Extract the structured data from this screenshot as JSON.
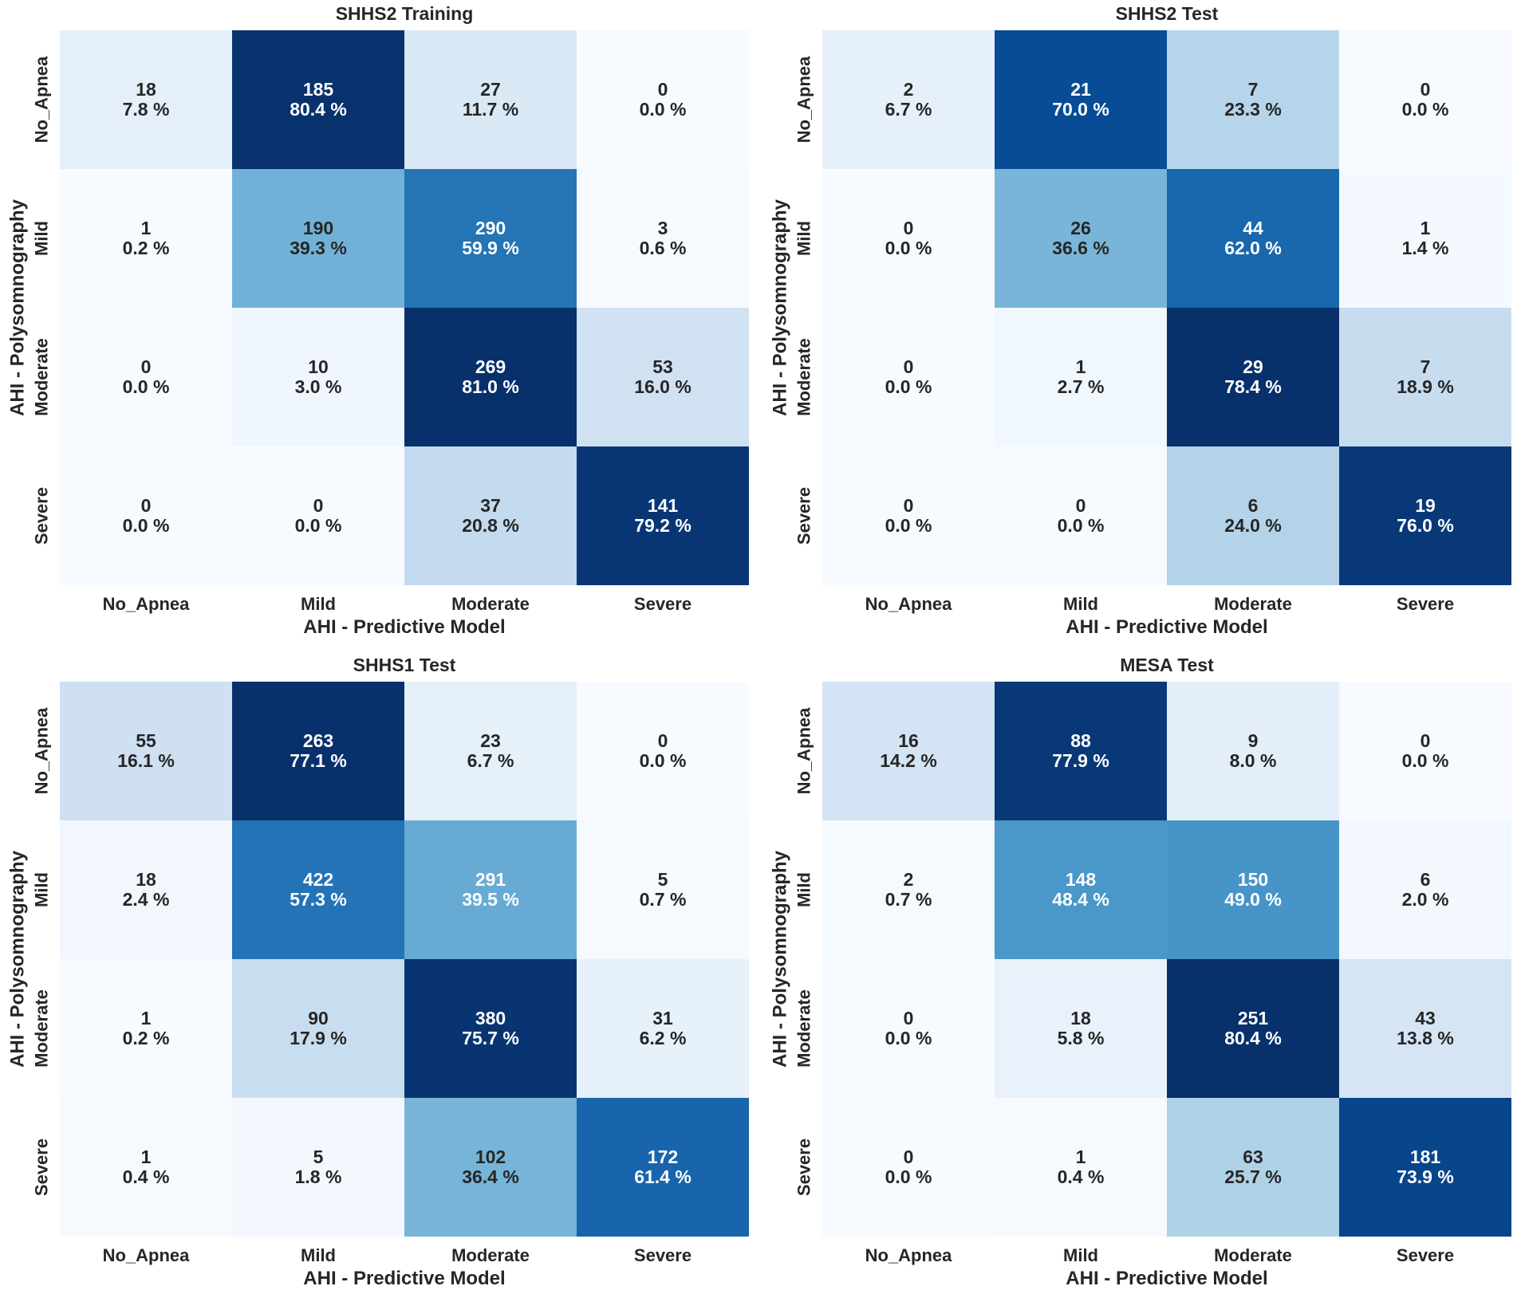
{
  "chart_data": [
    {
      "type": "heatmap",
      "title": "SHHS2 Training",
      "xlabel": "AHI - Predictive Model",
      "ylabel": "AHI - Polysomnography",
      "x_categories": [
        "No_Apnea",
        "Mild",
        "Moderate",
        "Severe"
      ],
      "y_categories": [
        "No_Apnea",
        "Mild",
        "Moderate",
        "Severe"
      ],
      "counts": [
        [
          18,
          185,
          27,
          0
        ],
        [
          1,
          190,
          290,
          3
        ],
        [
          0,
          10,
          269,
          53
        ],
        [
          0,
          0,
          37,
          141
        ]
      ],
      "percents": [
        [
          "7.8 %",
          "80.4 %",
          "11.7 %",
          "0.0 %"
        ],
        [
          "0.2 %",
          "39.3 %",
          "59.9 %",
          "0.6 %"
        ],
        [
          "0.0 %",
          "3.0 %",
          "81.0 %",
          "16.0 %"
        ],
        [
          "0.0 %",
          "0.0 %",
          "20.8 %",
          "79.2 %"
        ]
      ],
      "colorscale": "Blues"
    },
    {
      "type": "heatmap",
      "title": "SHHS2 Test",
      "xlabel": "AHI - Predictive Model",
      "ylabel": "AHI - Polysomnography",
      "x_categories": [
        "No_Apnea",
        "Mild",
        "Moderate",
        "Severe"
      ],
      "y_categories": [
        "No_Apnea",
        "Mild",
        "Moderate",
        "Severe"
      ],
      "counts": [
        [
          2,
          21,
          7,
          0
        ],
        [
          0,
          26,
          44,
          1
        ],
        [
          0,
          1,
          29,
          7
        ],
        [
          0,
          0,
          6,
          19
        ]
      ],
      "percents": [
        [
          "6.7 %",
          "70.0 %",
          "23.3 %",
          "0.0 %"
        ],
        [
          "0.0 %",
          "36.6 %",
          "62.0 %",
          "1.4 %"
        ],
        [
          "0.0 %",
          "2.7 %",
          "78.4 %",
          "18.9 %"
        ],
        [
          "0.0 %",
          "0.0 %",
          "24.0 %",
          "76.0 %"
        ]
      ],
      "colorscale": "Blues"
    },
    {
      "type": "heatmap",
      "title": "SHHS1 Test",
      "xlabel": "AHI - Predictive Model",
      "ylabel": "AHI - Polysomnography",
      "x_categories": [
        "No_Apnea",
        "Mild",
        "Moderate",
        "Severe"
      ],
      "y_categories": [
        "No_Apnea",
        "Mild",
        "Moderate",
        "Severe"
      ],
      "counts": [
        [
          55,
          263,
          23,
          0
        ],
        [
          18,
          422,
          291,
          5
        ],
        [
          1,
          90,
          380,
          31
        ],
        [
          1,
          5,
          102,
          172
        ]
      ],
      "percents": [
        [
          "16.1 %",
          "77.1 %",
          "6.7 %",
          "0.0 %"
        ],
        [
          "2.4 %",
          "57.3 %",
          "39.5 %",
          "0.7 %"
        ],
        [
          "0.2 %",
          "17.9 %",
          "75.7 %",
          "6.2 %"
        ],
        [
          "0.4 %",
          "1.8 %",
          "36.4 %",
          "61.4 %"
        ]
      ],
      "colorscale": "Blues"
    },
    {
      "type": "heatmap",
      "title": "MESA Test",
      "xlabel": "AHI - Predictive Model",
      "ylabel": "AHI - Polysomnography",
      "x_categories": [
        "No_Apnea",
        "Mild",
        "Moderate",
        "Severe"
      ],
      "y_categories": [
        "No_Apnea",
        "Mild",
        "Moderate",
        "Severe"
      ],
      "counts": [
        [
          16,
          88,
          9,
          0
        ],
        [
          2,
          148,
          150,
          6
        ],
        [
          0,
          18,
          251,
          43
        ],
        [
          0,
          1,
          63,
          181
        ]
      ],
      "percents": [
        [
          "14.2 %",
          "77.9 %",
          "8.0 %",
          "0.0 %"
        ],
        [
          "0.7 %",
          "48.4 %",
          "49.0 %",
          "2.0 %"
        ],
        [
          "0.0 %",
          "5.8 %",
          "80.4 %",
          "13.8 %"
        ],
        [
          "0.0 %",
          "0.4 %",
          "25.7 %",
          "73.9 %"
        ]
      ],
      "colorscale": "Blues"
    }
  ]
}
